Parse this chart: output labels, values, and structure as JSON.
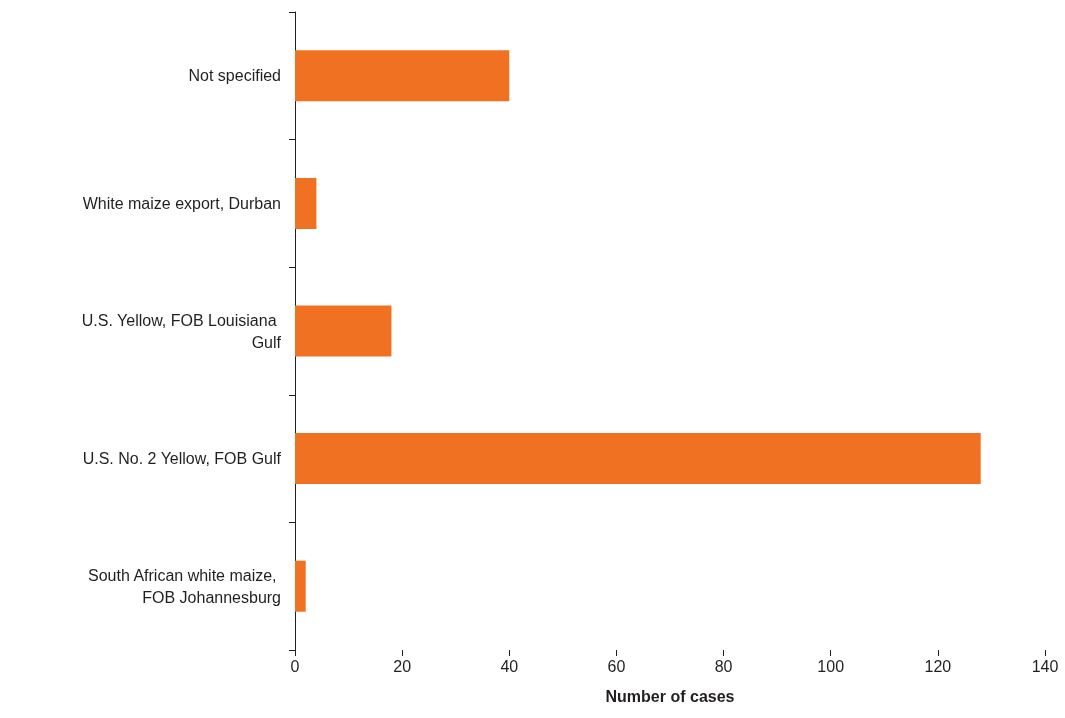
{
  "chart_data": {
    "type": "bar",
    "orientation": "horizontal",
    "xlabel": "Number of cases",
    "categories": [
      "Not specified",
      "White maize export, Durban",
      "U.S. Yellow, FOB Louisiana Gulf",
      "U.S. No. 2 Yellow, FOB Gulf",
      "South African white maize, FOB Johannesburg"
    ],
    "values": [
      40,
      4,
      18,
      128,
      2
    ],
    "color": "#f07122",
    "xlim": [
      0,
      140
    ],
    "xticks": [
      0,
      20,
      40,
      60,
      80,
      100,
      120,
      140
    ],
    "grid": false
  }
}
